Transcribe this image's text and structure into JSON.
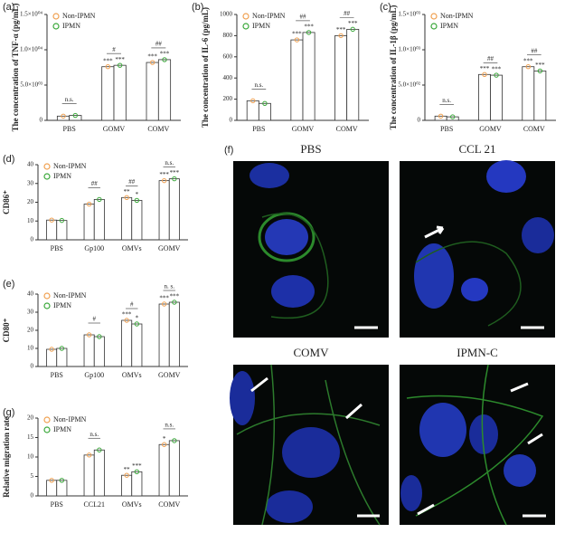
{
  "chart_data": [
    {
      "type": "bar",
      "panel": "(a)",
      "y_label": "The concentration of TNF-α (pg/mL)",
      "categories": [
        "PBS",
        "GOMV",
        "COMV"
      ],
      "series": [
        {
          "name": "Non-IPMN",
          "color": "#f0a050",
          "values": [
            600,
            7600,
            8200
          ],
          "significance": [
            "",
            "***",
            "***"
          ]
        },
        {
          "name": "IPMN",
          "color": "#3aa83a",
          "values": [
            700,
            7800,
            8600
          ],
          "significance": [
            "",
            "***",
            "***"
          ]
        }
      ],
      "comparisons": [
        "n.s.",
        "#",
        "##"
      ],
      "ylim": [
        0,
        15000
      ],
      "yticks": [
        0,
        {
          "value": 5000,
          "label": "5.0×10⁰³"
        },
        {
          "value": 10000,
          "label": "1.0×10⁰⁴"
        },
        {
          "value": 15000,
          "label": "1.5×10⁰⁴"
        }
      ]
    },
    {
      "type": "bar",
      "panel": "(b)",
      "y_label": "The concentration of IL-6 (pg/mL)",
      "categories": [
        "PBS",
        "GOMV",
        "COMV"
      ],
      "series": [
        {
          "name": "Non-IPMN",
          "color": "#f0a050",
          "values": [
            185,
            760,
            800
          ],
          "significance": [
            "",
            "***",
            "***"
          ]
        },
        {
          "name": "IPMN",
          "color": "#3aa83a",
          "values": [
            160,
            830,
            860
          ],
          "significance": [
            "",
            "***",
            "***"
          ]
        }
      ],
      "comparisons": [
        "n.s.",
        "##",
        "##"
      ],
      "ylim": [
        0,
        1000
      ],
      "yticks": [
        0,
        200,
        400,
        600,
        800,
        1000
      ]
    },
    {
      "type": "bar",
      "panel": "(c)",
      "y_label": "The concentration of IL-1β (pg/mL)",
      "categories": [
        "PBS",
        "GOMV",
        "COMV"
      ],
      "series": [
        {
          "name": "Non-IPMN",
          "color": "#f0a050",
          "values": [
            60,
            650,
            760
          ],
          "significance": [
            "",
            "***",
            "***"
          ]
        },
        {
          "name": "IPMN",
          "color": "#3aa83a",
          "values": [
            50,
            640,
            700
          ],
          "significance": [
            "",
            "***",
            "***"
          ]
        }
      ],
      "comparisons": [
        "n.s.",
        "##",
        "##"
      ],
      "ylim": [
        0,
        1500
      ],
      "yticks": [
        0,
        {
          "value": 500,
          "label": "5.0×10⁰²"
        },
        {
          "value": 1000,
          "label": "1.0×10⁰³"
        },
        {
          "value": 1500,
          "label": "1.5×10⁰³"
        }
      ]
    },
    {
      "type": "bar",
      "panel": "(d)",
      "y_label": "CD86⁺",
      "categories": [
        "PBS",
        "Gp100",
        "OMVs",
        "GOMV"
      ],
      "series": [
        {
          "name": "Non-IPMN",
          "color": "#f0a050",
          "values": [
            10.5,
            19,
            22.5,
            31.5
          ],
          "significance": [
            "",
            "",
            "**",
            "***"
          ]
        },
        {
          "name": "IPMN",
          "color": "#3aa83a",
          "values": [
            10.3,
            21.5,
            21,
            32.5
          ],
          "significance": [
            "",
            "",
            "*",
            "***"
          ]
        }
      ],
      "comparisons": [
        "",
        "##",
        "##",
        "n.s."
      ],
      "ylim": [
        0,
        40
      ],
      "yticks": [
        0,
        10,
        20,
        30,
        40
      ]
    },
    {
      "type": "bar",
      "panel": "(e)",
      "y_label": "CD80⁺",
      "categories": [
        "PBS",
        "Gp100",
        "OMVs",
        "GOMV"
      ],
      "series": [
        {
          "name": "Non-IPMN",
          "color": "#f0a050",
          "values": [
            9.5,
            17.5,
            25.5,
            34.5
          ],
          "significance": [
            "",
            "",
            "***",
            "***"
          ]
        },
        {
          "name": "IPMN",
          "color": "#3aa83a",
          "values": [
            10,
            16.5,
            23.5,
            35.5
          ],
          "significance": [
            "",
            "",
            "*",
            "***"
          ]
        }
      ],
      "comparisons": [
        "",
        "#",
        "#",
        "n. s."
      ],
      "ylim": [
        0,
        40
      ],
      "yticks": [
        0,
        10,
        20,
        30,
        40
      ]
    },
    {
      "type": "bar",
      "panel": "(g)",
      "y_label": "Relative migration rate",
      "categories": [
        "PBS",
        "CCL21",
        "OMVs",
        "COMV"
      ],
      "series": [
        {
          "name": "Non-IPMN",
          "color": "#f0a050",
          "values": [
            4,
            10.5,
            5.3,
            13.2
          ],
          "significance": [
            "",
            "",
            "**",
            "*"
          ]
        },
        {
          "name": "IPMN",
          "color": "#3aa83a",
          "values": [
            4,
            11.8,
            6.2,
            14.2
          ],
          "significance": [
            "",
            "",
            "***",
            ""
          ]
        }
      ],
      "comparisons": [
        "",
        "n.s.",
        "",
        "n.s."
      ],
      "ylim": [
        0,
        20
      ],
      "yticks": [
        0,
        5,
        10,
        15,
        20
      ]
    }
  ],
  "images": {
    "panel": "(f)",
    "labels": [
      "PBS",
      "CCL 21",
      "COMV",
      "IPMN-C"
    ]
  }
}
